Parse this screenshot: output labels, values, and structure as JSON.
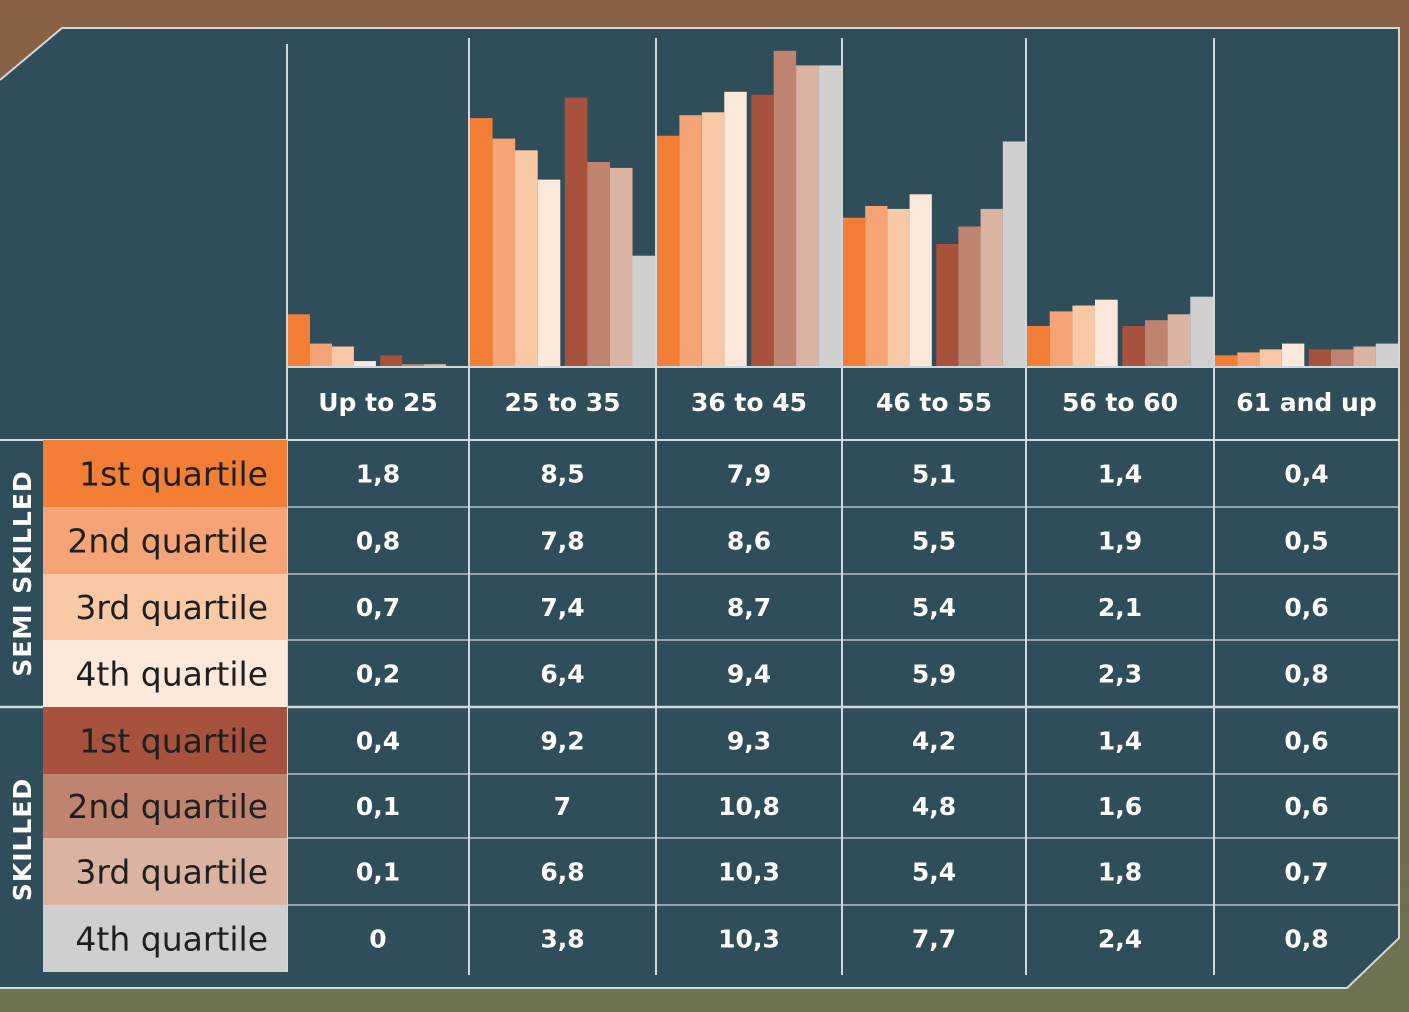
{
  "colors": {
    "panel": "#304d5a",
    "grid": "#cfd8dc",
    "series": [
      "#f37e35",
      "#f6a475",
      "#f9c9a6",
      "#fde9db",
      "#a6523d",
      "#bf8470",
      "#dbb3a2",
      "#cfcfcf"
    ]
  },
  "chart_data": {
    "type": "bar",
    "categories": [
      "Up to 25",
      "25 to 35",
      "36 to 45",
      "46 to 55",
      "56 to 60",
      "61 and up"
    ],
    "groups": [
      {
        "label": "SEMI SKILLED",
        "row_indices": [
          0,
          1,
          2,
          3
        ]
      },
      {
        "label": "SKILLED",
        "row_indices": [
          4,
          5,
          6,
          7
        ]
      }
    ],
    "series": [
      {
        "name": "1st quartile",
        "group": "SEMI SKILLED",
        "values": [
          1.8,
          8.5,
          7.9,
          5.1,
          1.4,
          0.4
        ],
        "labels": [
          "1,8",
          "8,5",
          "7,9",
          "5,1",
          "1,4",
          "0,4"
        ]
      },
      {
        "name": "2nd quartile",
        "group": "SEMI SKILLED",
        "values": [
          0.8,
          7.8,
          8.6,
          5.5,
          1.9,
          0.5
        ],
        "labels": [
          "0,8",
          "7,8",
          "8,6",
          "5,5",
          "1,9",
          "0,5"
        ]
      },
      {
        "name": "3rd quartile",
        "group": "SEMI SKILLED",
        "values": [
          0.7,
          7.4,
          8.7,
          5.4,
          2.1,
          0.6
        ],
        "labels": [
          "0,7",
          "7,4",
          "8,7",
          "5,4",
          "2,1",
          "0,6"
        ]
      },
      {
        "name": "4th quartile",
        "group": "SEMI SKILLED",
        "values": [
          0.2,
          6.4,
          9.4,
          5.9,
          2.3,
          0.8
        ],
        "labels": [
          "0,2",
          "6,4",
          "9,4",
          "5,9",
          "2,3",
          "0,8"
        ]
      },
      {
        "name": "1st quartile",
        "group": "SKILLED",
        "values": [
          0.4,
          9.2,
          9.3,
          4.2,
          1.4,
          0.6
        ],
        "labels": [
          "0,4",
          "9,2",
          "9,3",
          "4,2",
          "1,4",
          "0,6"
        ]
      },
      {
        "name": "2nd quartile",
        "group": "SKILLED",
        "values": [
          0.1,
          7,
          10.8,
          4.8,
          1.6,
          0.6
        ],
        "labels": [
          "0,1",
          "7",
          "10,8",
          "4,8",
          "1,6",
          "0,6"
        ]
      },
      {
        "name": "3rd quartile",
        "group": "SKILLED",
        "values": [
          0.1,
          6.8,
          10.3,
          5.4,
          1.8,
          0.7
        ],
        "labels": [
          "0,1",
          "6,8",
          "10,3",
          "5,4",
          "1,8",
          "0,7"
        ]
      },
      {
        "name": "4th quartile",
        "group": "SKILLED",
        "values": [
          0,
          3.8,
          10.3,
          7.7,
          2.4,
          0.8
        ],
        "labels": [
          "0",
          "3,8",
          "10,3",
          "7,7",
          "2,4",
          "0,8"
        ]
      }
    ],
    "ylim": [
      0,
      11.1
    ],
    "title": "",
    "xlabel": "",
    "ylabel": "",
    "legend": "table rows on left"
  }
}
